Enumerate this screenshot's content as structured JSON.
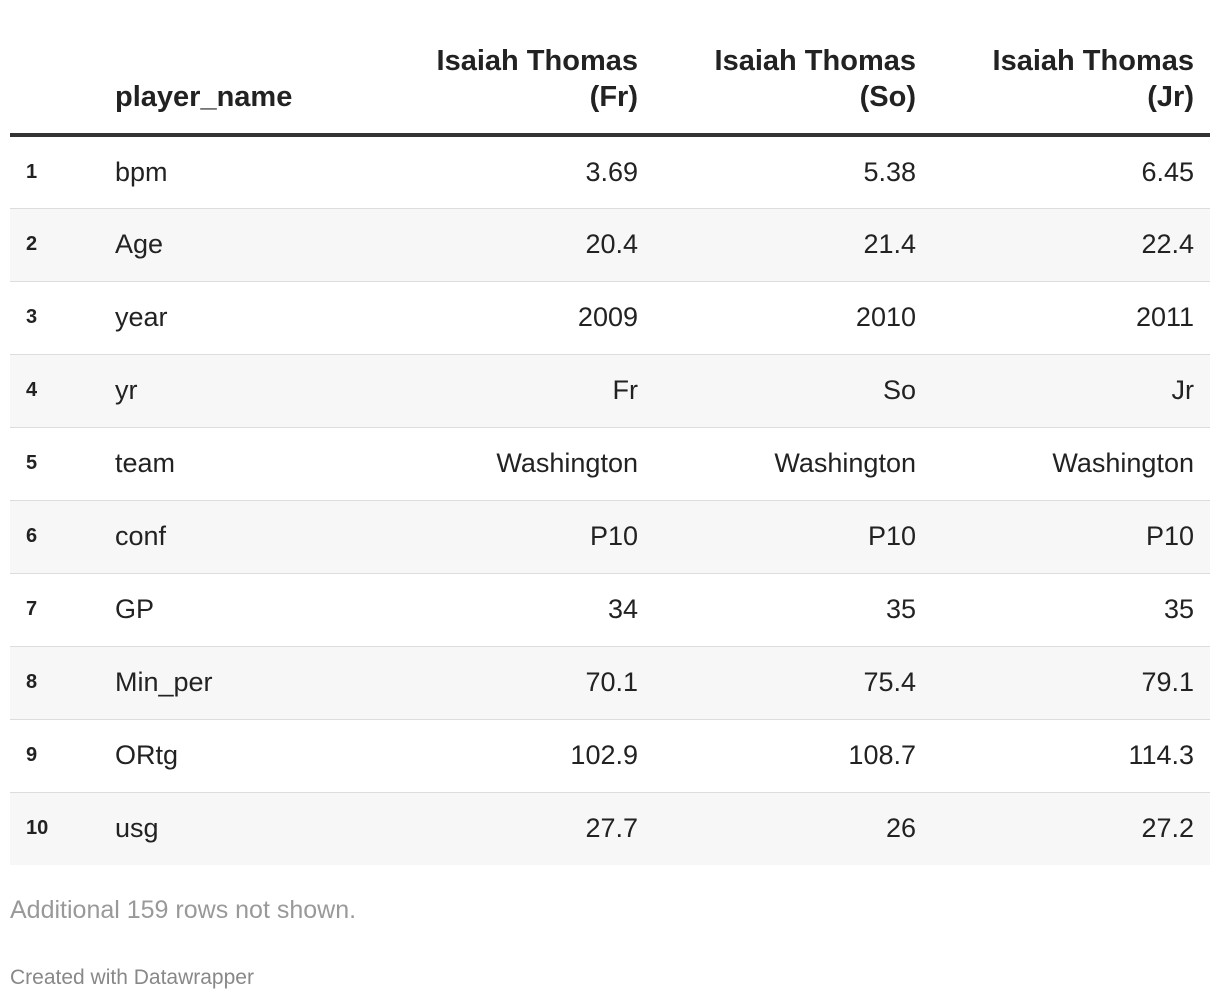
{
  "table": {
    "header": {
      "index_label": "",
      "name_label": "player_name",
      "columns": [
        {
          "line1": "Isaiah Thomas",
          "line2": "(Fr)"
        },
        {
          "line1": "Isaiah Thomas",
          "line2": "(So)"
        },
        {
          "line1": "Isaiah Thomas",
          "line2": "(Jr)"
        }
      ]
    },
    "rows": [
      {
        "index": "1",
        "name": "bpm",
        "values": [
          "3.69",
          "5.38",
          "6.45"
        ]
      },
      {
        "index": "2",
        "name": "Age",
        "values": [
          "20.4",
          "21.4",
          "22.4"
        ]
      },
      {
        "index": "3",
        "name": "year",
        "values": [
          "2009",
          "2010",
          "2011"
        ]
      },
      {
        "index": "4",
        "name": "yr",
        "values": [
          "Fr",
          "So",
          "Jr"
        ]
      },
      {
        "index": "5",
        "name": "team",
        "values": [
          "Washington",
          "Washington",
          "Washington"
        ]
      },
      {
        "index": "6",
        "name": "conf",
        "values": [
          "P10",
          "P10",
          "P10"
        ]
      },
      {
        "index": "7",
        "name": "GP",
        "values": [
          "34",
          "35",
          "35"
        ]
      },
      {
        "index": "8",
        "name": "Min_per",
        "values": [
          "70.1",
          "75.4",
          "79.1"
        ]
      },
      {
        "index": "9",
        "name": "ORtg",
        "values": [
          "102.9",
          "108.7",
          "114.3"
        ]
      },
      {
        "index": "10",
        "name": "usg",
        "values": [
          "27.7",
          "26",
          "27.2"
        ]
      }
    ]
  },
  "footer": {
    "note": "Additional 159 rows not shown.",
    "credit": "Created with Datawrapper"
  },
  "colors": {
    "text": "#222222",
    "header_rule": "#333333",
    "stripe": "#f7f7f7",
    "row_rule": "#dddddd",
    "note": "#999999"
  }
}
